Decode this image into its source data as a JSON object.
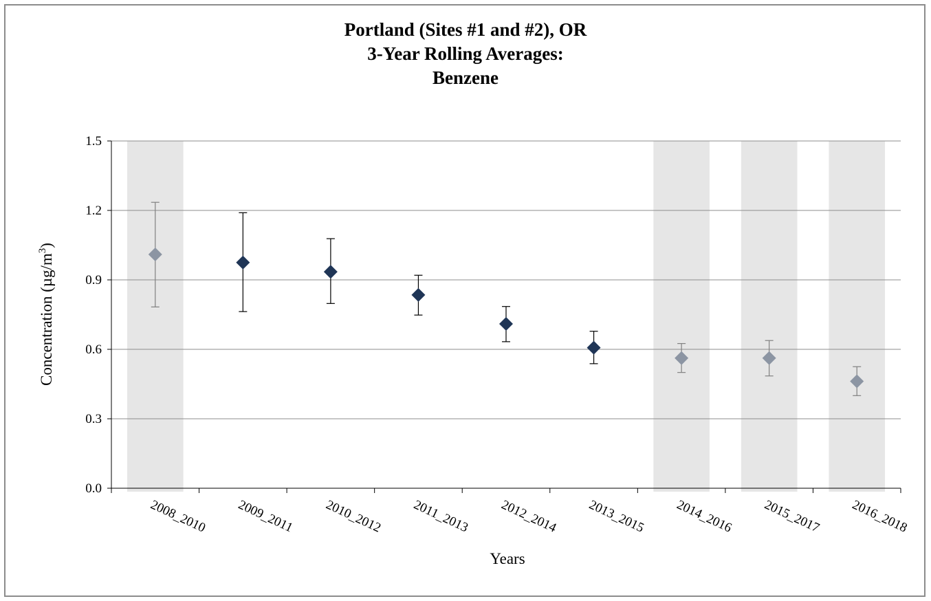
{
  "chart_data": {
    "type": "scatter",
    "title_lines": [
      "Portland (Sites #1 and #2), OR",
      "3-Year Rolling Averages:",
      "Benzene"
    ],
    "xlabel": "Years",
    "ylabel": "Concentration (µg/m",
    "ylabel_sup": "3",
    "ylabel_close": ")",
    "ylim": [
      0.0,
      1.5
    ],
    "yticks": [
      "0.0",
      "0.3",
      "0.6",
      "0.9",
      "1.2",
      "1.5"
    ],
    "grid": true,
    "categories": [
      "2008_2010",
      "2009_2011",
      "2010_2012",
      "2011_2013",
      "2012_2014",
      "2013_2015",
      "2014_2016",
      "2015_2017",
      "2016_2018"
    ],
    "values": [
      1.01,
      0.975,
      0.935,
      0.835,
      0.71,
      0.607,
      0.562,
      0.562,
      0.462
    ],
    "error_low": [
      0.783,
      0.763,
      0.798,
      0.748,
      0.633,
      0.538,
      0.5,
      0.485,
      0.4
    ],
    "error_high": [
      1.235,
      1.19,
      1.078,
      0.92,
      0.785,
      0.678,
      0.625,
      0.638,
      0.525
    ],
    "shaded": [
      true,
      false,
      false,
      false,
      false,
      false,
      true,
      true,
      true
    ],
    "colors": {
      "marker_full": "#1f3556",
      "marker_shaded": "#8c95a3",
      "shade_band": "#e6e6e6",
      "grid": "#8c8c8c",
      "errbar_full": "#000000",
      "errbar_shaded": "#808080"
    }
  }
}
